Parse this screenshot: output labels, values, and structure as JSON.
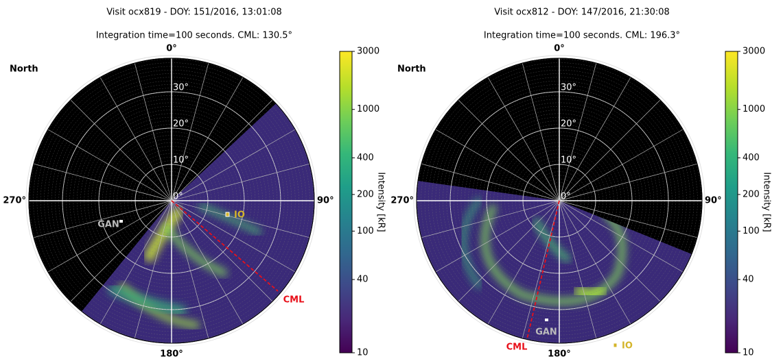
{
  "chart_data": [
    {
      "type": "polar-image",
      "title": "Visit ocx819 - DOY: 151/2016, 13:01:08",
      "subtitle": "Integration time=100 seconds. CML: 130.5°",
      "hemisphere": "North",
      "angle_labels": [
        "0°",
        "90°",
        "180°",
        "270°"
      ],
      "radial_labels": [
        "0°",
        "10°",
        "20°",
        "30°"
      ],
      "annotations": [
        {
          "text": "CML",
          "color": "#e8101a"
        },
        {
          "text": "GAN",
          "color": "#bbbbbb"
        },
        {
          "text": "IO",
          "color": "#d4b52a"
        }
      ],
      "colorbar": {
        "label": "Intensity [kR]",
        "log": true,
        "lim": [
          10,
          3000
        ],
        "ticks": [
          10,
          40,
          100,
          200,
          400,
          1000,
          3000
        ]
      }
    },
    {
      "type": "polar-image",
      "title": "Visit ocx812 - DOY: 147/2016, 21:30:08",
      "subtitle": "Integration time=100 seconds. CML: 196.3°",
      "hemisphere": "North",
      "angle_labels": [
        "0°",
        "90°",
        "180°",
        "270°"
      ],
      "radial_labels": [
        "0°",
        "10°",
        "20°",
        "30°"
      ],
      "annotations": [
        {
          "text": "CML",
          "color": "#e8101a"
        },
        {
          "text": "GAN",
          "color": "#bbbbbb"
        },
        {
          "text": "IO",
          "color": "#d4b52a"
        }
      ],
      "colorbar": {
        "label": "Intensity [kR]",
        "log": true,
        "lim": [
          10,
          3000
        ],
        "ticks": [
          10,
          40,
          100,
          200,
          400,
          1000,
          3000
        ]
      }
    }
  ]
}
